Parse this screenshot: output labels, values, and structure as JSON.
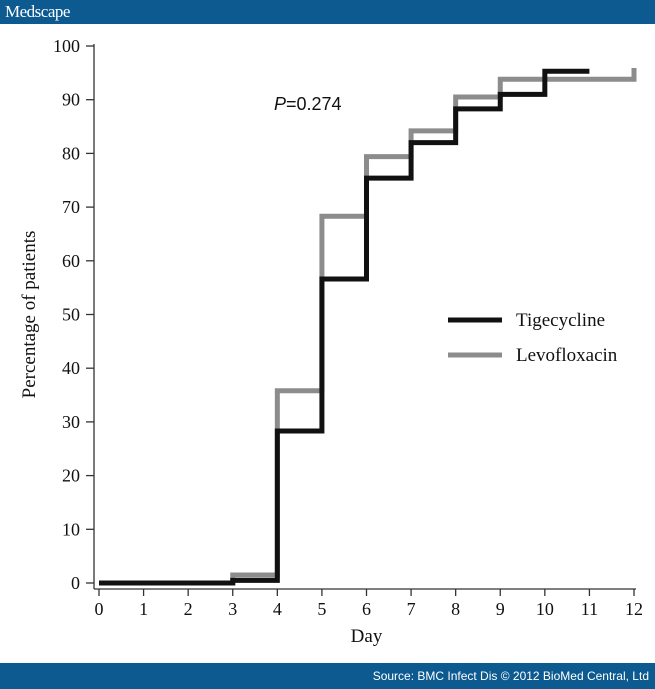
{
  "header": {
    "logo": "Medscape"
  },
  "footer": {
    "source": "Source: BMC Infect Dis © 2012 BioMed Central, Ltd"
  },
  "chart_data": {
    "type": "line",
    "step": true,
    "xlabel": "Day",
    "ylabel": "Percentage of patients",
    "xlim": [
      0,
      12
    ],
    "ylim": [
      0,
      100
    ],
    "xticks": [
      0,
      1,
      2,
      3,
      4,
      5,
      6,
      7,
      8,
      9,
      10,
      11,
      12
    ],
    "yticks": [
      0,
      10,
      20,
      30,
      40,
      50,
      60,
      70,
      80,
      90,
      100
    ],
    "annotation": {
      "italic": "P",
      "text": "=0.274"
    },
    "legend_position": "right",
    "series": [
      {
        "name": "Tigecycline",
        "color": "#111111",
        "x": [
          0,
          3,
          4,
          5,
          6,
          7,
          8,
          9,
          10,
          11
        ],
        "y": [
          0,
          0.5,
          28.3,
          56.6,
          75.4,
          82,
          88.3,
          91,
          95.3,
          95.3
        ]
      },
      {
        "name": "Levofloxacin",
        "color": "#8c8c8c",
        "x": [
          0,
          3,
          4,
          5,
          6,
          7,
          8,
          9,
          12,
          12
        ],
        "y": [
          0,
          1.5,
          35.8,
          68.3,
          79.4,
          84.2,
          90.5,
          93.8,
          93.8,
          95.9
        ]
      }
    ]
  }
}
